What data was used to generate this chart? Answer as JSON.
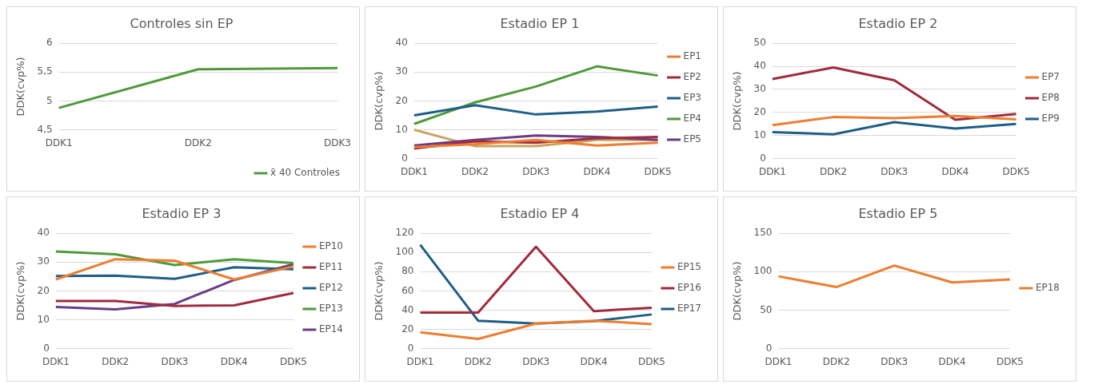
{
  "chart_data": [
    {
      "type": "line",
      "title": "Controles sin EP",
      "ylabel": "DDK(cvp%)",
      "categories": [
        "DDK1",
        "DDK2",
        "DDK3"
      ],
      "ylim": [
        4.5,
        6
      ],
      "yticks": [
        {
          "value": 4.5,
          "label": "4,5"
        },
        5,
        {
          "value": 5.5,
          "label": "5,5"
        },
        6
      ],
      "grid": "y",
      "legend": "bottom right",
      "series": [
        {
          "name": "x̄ 40 Controles",
          "color": "#4e9a3a",
          "values": [
            4.88,
            5.55,
            5.57
          ]
        }
      ]
    },
    {
      "type": "line",
      "title": "Estadio EP 1",
      "ylabel": "DDK(cvp%)",
      "categories": [
        "DDK1",
        "DDK2",
        "DDK3",
        "DDK4",
        "DDK5"
      ],
      "ylim": [
        0,
        40
      ],
      "yticks": [
        0,
        10,
        20,
        30,
        40
      ],
      "grid": "y",
      "legend": "right",
      "series": [
        {
          "name": "EP1",
          "color": "#ed7d31",
          "values": [
            4,
            5,
            6.5,
            4.5,
            5.5
          ]
        },
        {
          "name": "EP2",
          "color": "#a02b3c",
          "values": [
            3.5,
            6,
            5.5,
            7,
            7.5
          ]
        },
        {
          "name": "EP3",
          "color": "#1f5e86",
          "values": [
            15,
            18.5,
            15.3,
            16.3,
            18
          ]
        },
        {
          "name": "EP4",
          "color": "#4e9a3a",
          "values": [
            12,
            19.5,
            25,
            32,
            28.8
          ]
        },
        {
          "name": "EP5",
          "color": "#6a3d86",
          "values": [
            4.5,
            6.5,
            8,
            7.5,
            6.5
          ]
        },
        {
          "color": "#c9a560",
          "values": [
            10,
            4.3,
            4.3,
            6.5,
            6.5
          ]
        }
      ]
    },
    {
      "type": "line",
      "title": "Estadio EP 2",
      "ylabel": "DDK(cvp%)",
      "categories": [
        "DDK1",
        "DDK2",
        "DDK3",
        "DDK4",
        "DDK5"
      ],
      "ylim": [
        0,
        50
      ],
      "yticks": [
        0,
        10,
        20,
        30,
        40,
        50
      ],
      "grid": "y",
      "legend": "right",
      "series": [
        {
          "name": "EP7",
          "color": "#ed7d31",
          "values": [
            14.5,
            18,
            17.5,
            18.5,
            17
          ]
        },
        {
          "name": "EP8",
          "color": "#a02b3c",
          "values": [
            34.5,
            39.5,
            34,
            16.8,
            19.3
          ]
        },
        {
          "name": "EP9",
          "color": "#1f5e86",
          "values": [
            11.5,
            10.5,
            15.8,
            13,
            15
          ]
        }
      ]
    },
    {
      "type": "line",
      "title": "Estadio EP 3",
      "ylabel": "DDK(cvp%)",
      "categories": [
        "DDK1",
        "DDK2",
        "DDK3",
        "DDK4",
        "DDK5"
      ],
      "ylim": [
        0,
        40
      ],
      "yticks": [
        0,
        10,
        20,
        30,
        40
      ],
      "grid": "y",
      "legend": "right",
      "series": [
        {
          "name": "EP10",
          "color": "#ed7d31",
          "values": [
            24,
            31,
            30.5,
            24,
            28.5
          ]
        },
        {
          "name": "EP11",
          "color": "#a02b3c",
          "values": [
            16.5,
            16.5,
            14.8,
            15,
            19.3
          ]
        },
        {
          "name": "EP12",
          "color": "#1f5e86",
          "values": [
            25.2,
            25.3,
            24.2,
            28.2,
            27.5
          ]
        },
        {
          "name": "EP13",
          "color": "#4e9a3a",
          "values": [
            33.7,
            32.7,
            29,
            31,
            29.7
          ]
        },
        {
          "name": "EP14",
          "color": "#6a3d86",
          "values": [
            14.4,
            13.6,
            15.5,
            23.8,
            29.3
          ]
        }
      ]
    },
    {
      "type": "line",
      "title": "Estadio EP 4",
      "ylabel": "DDK(cvp%)",
      "categories": [
        "DDK1",
        "DDK2",
        "DDK3",
        "DDK4",
        "DDK5"
      ],
      "ylim": [
        0,
        120
      ],
      "yticks": [
        0,
        20,
        40,
        60,
        80,
        100,
        120
      ],
      "grid": "y",
      "legend": "right",
      "series": [
        {
          "name": "EP15",
          "color": "#ed7d31",
          "values": [
            17,
            10,
            26,
            29,
            25.5
          ]
        },
        {
          "name": "EP16",
          "color": "#a02b3c",
          "values": [
            37.5,
            37.5,
            106,
            39,
            42.5
          ]
        },
        {
          "name": "EP17",
          "color": "#1f5e86",
          "values": [
            108,
            29,
            26,
            28.5,
            35.5
          ]
        }
      ]
    },
    {
      "type": "line",
      "title": "Estadio EP 5",
      "ylabel": "DDK(cvp%)",
      "categories": [
        "DDK1",
        "DDK2",
        "DDK3",
        "DDK4",
        "DDK5"
      ],
      "ylim": [
        0,
        150
      ],
      "yticks": [
        0,
        50,
        100,
        150
      ],
      "grid": "y",
      "legend": "right",
      "series": [
        {
          "name": "EP18",
          "color": "#ed7d31",
          "values": [
            94,
            80,
            108,
            86,
            90
          ]
        }
      ]
    }
  ]
}
